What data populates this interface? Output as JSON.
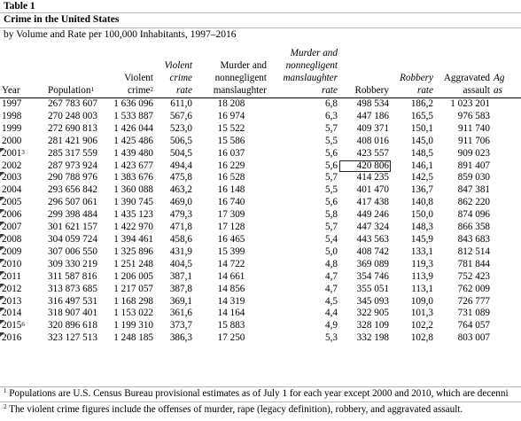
{
  "title": "Table 1",
  "subtitle": "Crime in the United States",
  "description": "by Volume and Rate per 100,000 Inhabitants, 1997–2016",
  "columns": {
    "year": "Year",
    "population": "Population",
    "population_sup": "1",
    "violent_crime_line1": "Violent",
    "violent_crime_line2": "crime",
    "violent_crime_sup": "2",
    "violent_rate_line1": "Violent",
    "violent_rate_line2": "crime",
    "violent_rate_line3": "rate",
    "murder_line1": "Murder and",
    "murder_line2": "nonnegligent",
    "murder_line3": "manslaughter",
    "murder_rate_line1": "Murder and",
    "murder_rate_line2": "nonnegligent",
    "murder_rate_line3": "manslaughter",
    "murder_rate_line4": "rate",
    "robbery": "Robbery",
    "robbery_rate_line1": "Robbery",
    "robbery_rate_line2": "rate",
    "agg_line1": "Aggravated",
    "agg_line2": "assault",
    "agg_rate_line1": "Ag",
    "agg_rate_line2": "as"
  },
  "rows": [
    {
      "year": "1997",
      "year_sup": "",
      "population": "267 783 607",
      "violent": "1 636 096",
      "violent_rate": "611,0",
      "murder": "18 208",
      "murder_rate": "6,8",
      "robbery": "498 534",
      "robbery_rate": "186,2",
      "assault": "1 023 201"
    },
    {
      "year": "1998",
      "year_sup": "",
      "population": "270 248 003",
      "violent": "1 533 887",
      "violent_rate": "567,6",
      "murder": "16 974",
      "murder_rate": "6,3",
      "robbery": "447 186",
      "robbery_rate": "165,5",
      "assault": "976 583"
    },
    {
      "year": "1999",
      "year_sup": "",
      "population": "272 690 813",
      "violent": "1 426 044",
      "violent_rate": "523,0",
      "murder": "15 522",
      "murder_rate": "5,7",
      "robbery": "409 371",
      "robbery_rate": "150,1",
      "assault": "911 740"
    },
    {
      "year": "2000",
      "year_sup": "",
      "population": "281 421 906",
      "violent": "1 425 486",
      "violent_rate": "506,5",
      "murder": "15 586",
      "murder_rate": "5,5",
      "robbery": "408 016",
      "robbery_rate": "145,0",
      "assault": "911 706"
    },
    {
      "year": "2001",
      "year_sup": "3",
      "population": "285 317 559",
      "violent": "1 439 480",
      "violent_rate": "504,5",
      "murder": "16 037",
      "murder_rate": "5,6",
      "robbery": "423 557",
      "robbery_rate": "148,5",
      "assault": "909 023"
    },
    {
      "year": "2002",
      "year_sup": "",
      "population": "287 973 924",
      "violent": "1 423 677",
      "violent_rate": "494,4",
      "murder": "16 229",
      "murder_rate": "5,6",
      "robbery": "420 806",
      "robbery_rate": "146,1",
      "assault": "891 407"
    },
    {
      "year": "2003",
      "year_sup": "",
      "population": "290 788 976",
      "violent": "1 383 676",
      "violent_rate": "475,8",
      "murder": "16 528",
      "murder_rate": "5,7",
      "robbery": "414 235",
      "robbery_rate": "142,5",
      "assault": "859 030"
    },
    {
      "year": "2004",
      "year_sup": "",
      "population": "293 656 842",
      "violent": "1 360 088",
      "violent_rate": "463,2",
      "murder": "16 148",
      "murder_rate": "5,5",
      "robbery": "401 470",
      "robbery_rate": "136,7",
      "assault": "847 381"
    },
    {
      "year": "2005",
      "year_sup": "",
      "population": "296 507 061",
      "violent": "1 390 745",
      "violent_rate": "469,0",
      "murder": "16 740",
      "murder_rate": "5,6",
      "robbery": "417 438",
      "robbery_rate": "140,8",
      "assault": "862 220"
    },
    {
      "year": "2006",
      "year_sup": "",
      "population": "299 398 484",
      "violent": "1 435 123",
      "violent_rate": "479,3",
      "murder": "17 309",
      "murder_rate": "5,8",
      "robbery": "449 246",
      "robbery_rate": "150,0",
      "assault": "874 096"
    },
    {
      "year": "2007",
      "year_sup": "",
      "population": "301 621 157",
      "violent": "1 422 970",
      "violent_rate": "471,8",
      "murder": "17 128",
      "murder_rate": "5,7",
      "robbery": "447 324",
      "robbery_rate": "148,3",
      "assault": "866 358"
    },
    {
      "year": "2008",
      "year_sup": "",
      "population": "304 059 724",
      "violent": "1 394 461",
      "violent_rate": "458,6",
      "murder": "16 465",
      "murder_rate": "5,4",
      "robbery": "443 563",
      "robbery_rate": "145,9",
      "assault": "843 683"
    },
    {
      "year": "2009",
      "year_sup": "",
      "population": "307 006 550",
      "violent": "1 325 896",
      "violent_rate": "431,9",
      "murder": "15 399",
      "murder_rate": "5,0",
      "robbery": "408 742",
      "robbery_rate": "133,1",
      "assault": "812 514"
    },
    {
      "year": "2010",
      "year_sup": "",
      "population": "309 330 219",
      "violent": "1 251 248",
      "violent_rate": "404,5",
      "murder": "14 722",
      "murder_rate": "4,8",
      "robbery": "369 089",
      "robbery_rate": "119,3",
      "assault": "781 844"
    },
    {
      "year": "2011",
      "year_sup": "",
      "population": "311 587 816",
      "violent": "1 206 005",
      "violent_rate": "387,1",
      "murder": "14 661",
      "murder_rate": "4,7",
      "robbery": "354 746",
      "robbery_rate": "113,9",
      "assault": "752 423"
    },
    {
      "year": "2012",
      "year_sup": "",
      "population": "313 873 685",
      "violent": "1 217 057",
      "violent_rate": "387,8",
      "murder": "14 856",
      "murder_rate": "4,7",
      "robbery": "355 051",
      "robbery_rate": "113,1",
      "assault": "762 009"
    },
    {
      "year": "2013",
      "year_sup": "",
      "population": "316 497 531",
      "violent": "1 168 298",
      "violent_rate": "369,1",
      "murder": "14 319",
      "murder_rate": "4,5",
      "robbery": "345 093",
      "robbery_rate": "109,0",
      "assault": "726 777"
    },
    {
      "year": "2014",
      "year_sup": "",
      "population": "318 907 401",
      "violent": "1 153 022",
      "violent_rate": "361,6",
      "murder": "14 164",
      "murder_rate": "4,4",
      "robbery": "322 905",
      "robbery_rate": "101,3",
      "assault": "731 089"
    },
    {
      "year": "2015",
      "year_sup": "6",
      "population": "320 896 618",
      "violent": "1 199 310",
      "violent_rate": "373,7",
      "murder": "15 883",
      "murder_rate": "4,9",
      "robbery": "328 109",
      "robbery_rate": "102,2",
      "assault": "764 057"
    },
    {
      "year": "2016",
      "year_sup": "",
      "population": "323 127 513",
      "violent": "1 248 185",
      "violent_rate": "386,3",
      "murder": "17 250",
      "murder_rate": "5,3",
      "robbery": "332 198",
      "robbery_rate": "102,8",
      "assault": "803 007"
    }
  ],
  "footnotes": [
    {
      "sup": "1",
      "text": "Populations are U.S. Census Bureau provisional estimates as of July 1 for each year except 2000 and 2010, which are decenni"
    },
    {
      "sup": "2",
      "text": "The violent crime figures include the offenses of murder, rape (legacy definition), robbery, and aggravated assault."
    }
  ],
  "selected_cell": "420 806"
}
